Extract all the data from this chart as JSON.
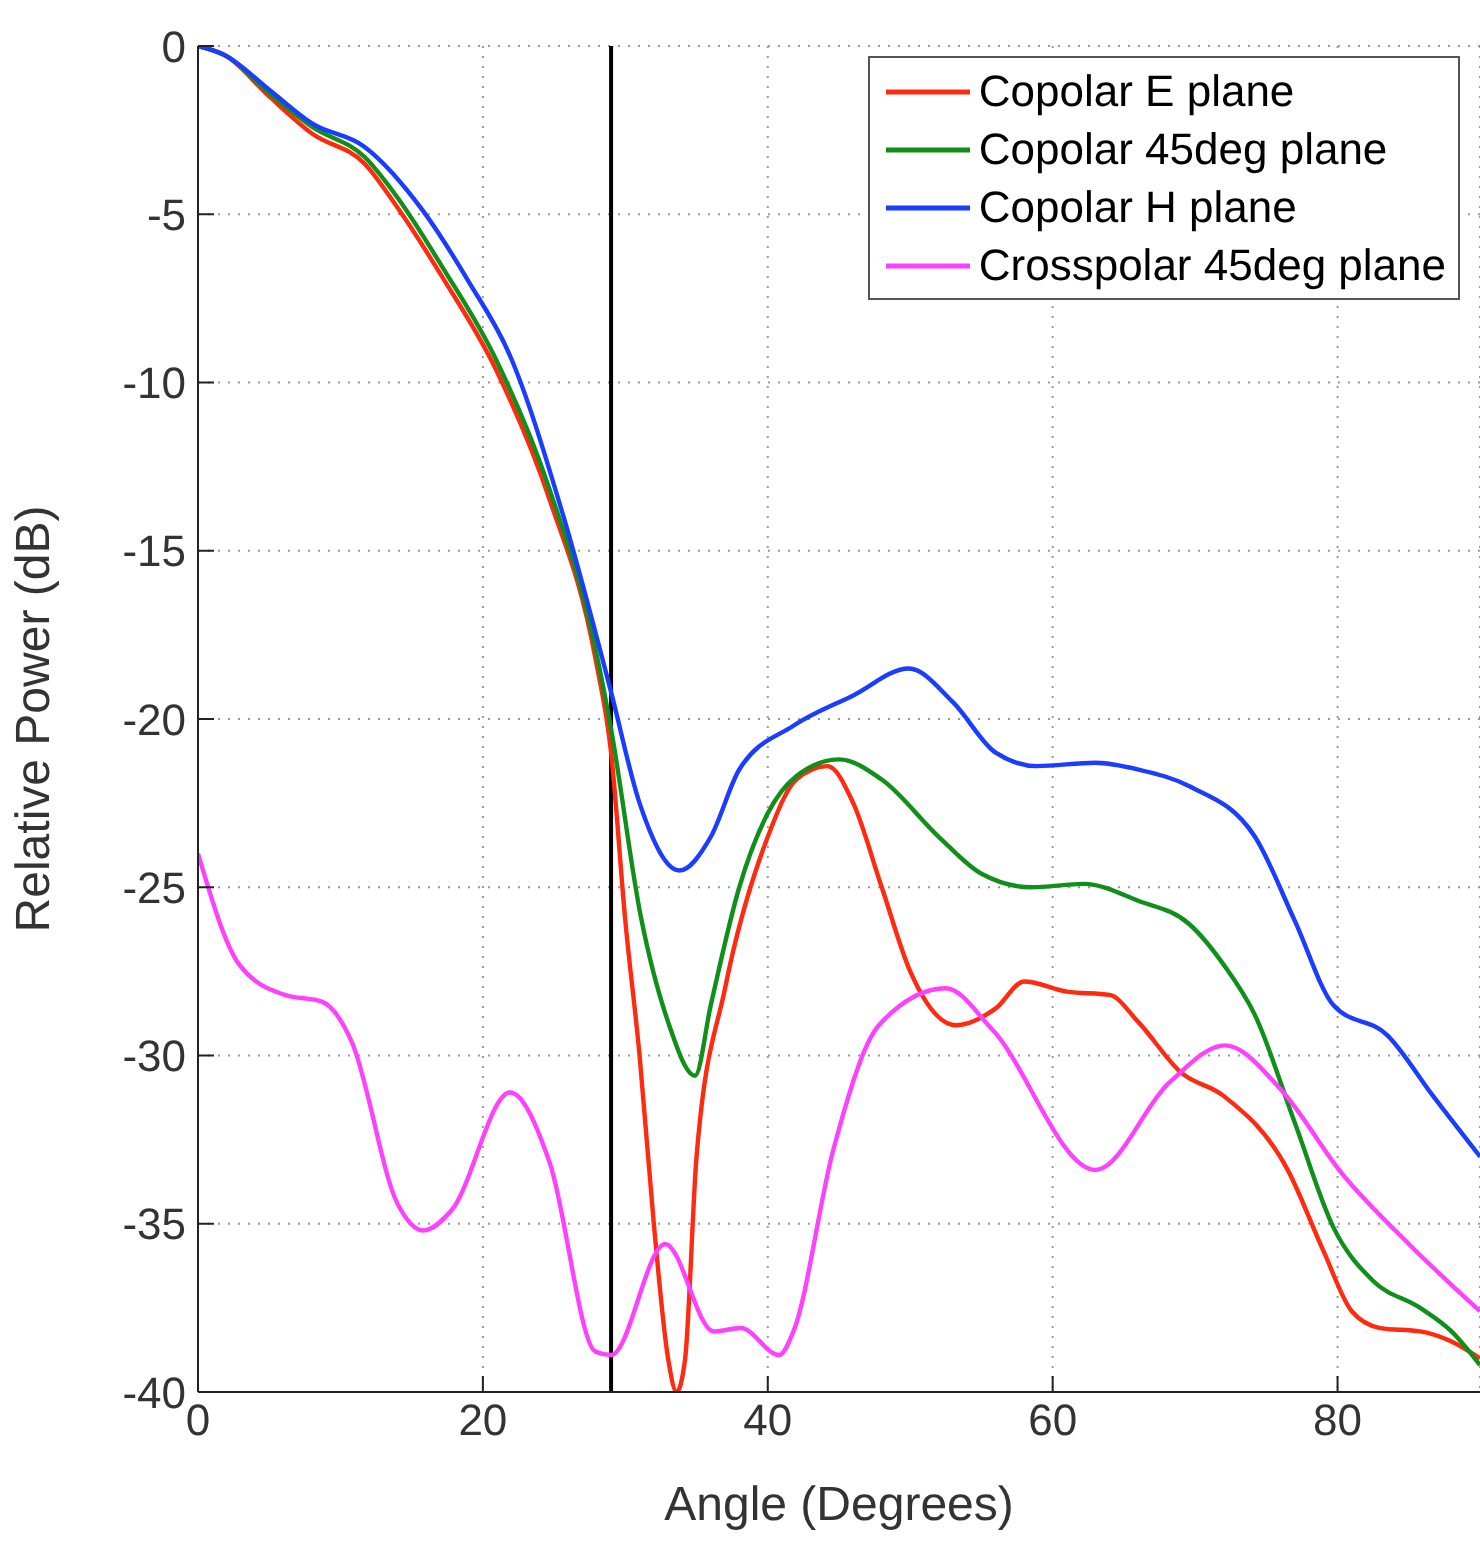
{
  "chart_data": {
    "type": "line",
    "xlabel": "Angle (Degrees)",
    "ylabel": "Relative Power (dB)",
    "xlim": [
      0,
      90
    ],
    "xticks": [
      0,
      20,
      40,
      60,
      80
    ],
    "ylim": [
      -40,
      0
    ],
    "yticks": [
      -40,
      -35,
      -30,
      -25,
      -20,
      -15,
      -10,
      -5,
      0
    ],
    "grid": true,
    "legend": "top right",
    "line_style": "solid",
    "marker": "none",
    "ref_lines": [
      {
        "axis": "x",
        "value": 29,
        "color": "#000000"
      }
    ],
    "series": [
      {
        "name": "Copolar E plane",
        "color": "#ff2a10",
        "x": [
          0,
          2,
          5,
          8,
          11.7,
          14,
          17.2,
          20.9,
          24.7,
          27.9,
          29,
          30,
          31,
          32,
          33,
          33.6,
          34.2,
          35,
          37,
          40,
          42,
          44.2,
          46,
          48,
          50,
          53.2,
          56,
          58,
          61,
          64,
          66,
          69,
          72,
          76.5,
          79,
          81,
          83,
          85.8,
          88,
          90
        ],
        "values": [
          0,
          -0.3,
          -1.5,
          -2.6,
          -3.5,
          -4.8,
          -6.9,
          -9.6,
          -13.5,
          -18.2,
          -21,
          -26,
          -30,
          -35,
          -39,
          -40,
          -39,
          -33,
          -28,
          -23.5,
          -21.8,
          -21.4,
          -22.5,
          -25,
          -27.5,
          -29.1,
          -28.6,
          -27.8,
          -28.1,
          -28.2,
          -29,
          -30.5,
          -31.2,
          -33.4,
          -35.8,
          -37.6,
          -38.1,
          -38.2,
          -38.5,
          -39
        ]
      },
      {
        "name": "Copolar 45deg plane",
        "color": "#10901a",
        "x": [
          0,
          2,
          5,
          8,
          11.7,
          14,
          17.2,
          20.9,
          24.7,
          27.9,
          29,
          31.1,
          33,
          34.9,
          36,
          38,
          40,
          42,
          45,
          48,
          52,
          55,
          58.5,
          62.2,
          66,
          69.6,
          72,
          74.2,
          77,
          79.7,
          82.5,
          85.8,
          88,
          90
        ],
        "values": [
          0,
          -0.3,
          -1.4,
          -2.4,
          -3.3,
          -4.5,
          -6.6,
          -9.3,
          -13.2,
          -17.9,
          -20.3,
          -25.9,
          -29,
          -30.6,
          -28.5,
          -25,
          -22.8,
          -21.7,
          -21.2,
          -21.8,
          -23.5,
          -24.6,
          -25,
          -24.9,
          -25.4,
          -26.1,
          -27.3,
          -28.8,
          -32,
          -35.1,
          -36.7,
          -37.5,
          -38.2,
          -39.2
        ]
      },
      {
        "name": "Copolar H plane",
        "color": "#1a3dff",
        "x": [
          0,
          2,
          5,
          8,
          11.7,
          15.8,
          19,
          21.9,
          25.6,
          29,
          31,
          33.8,
          36,
          38,
          41.8,
          46,
          49.9,
          53,
          56,
          58.9,
          63,
          66,
          69.6,
          74.2,
          77,
          79.7,
          83.5,
          86.7,
          90
        ],
        "values": [
          0,
          -0.3,
          -1.3,
          -2.3,
          -3,
          -4.9,
          -7,
          -9.2,
          -13.9,
          -19.2,
          -22.5,
          -24.5,
          -23.5,
          -21.5,
          -20.2,
          -19.3,
          -18.5,
          -19.5,
          -21,
          -21.4,
          -21.3,
          -21.5,
          -22,
          -23.5,
          -26,
          -28.5,
          -29.4,
          -31.2,
          -33
        ]
      },
      {
        "name": "Crosspolar 45deg plane",
        "color": "#ff40ff",
        "x": [
          0,
          2.9,
          6.1,
          8.7,
          10.8,
          14,
          15.8,
          17.8,
          21.9,
          24.7,
          27.9,
          29,
          32.8,
          36.2,
          38.1,
          40.8,
          41.8,
          44.6,
          47.8,
          52.5,
          55.7,
          63,
          68.2,
          72.1,
          76,
          80.3,
          85,
          90
        ],
        "values": [
          -24,
          -27.3,
          -28.2,
          -28.4,
          -29.6,
          -34.4,
          -35.2,
          -34.6,
          -31.1,
          -33.2,
          -38.8,
          -38.9,
          -35.6,
          -38.2,
          -38.1,
          -38.9,
          -38.2,
          -32.8,
          -29.1,
          -28,
          -29.2,
          -33.4,
          -30.8,
          -29.7,
          -31,
          -33.5,
          -35.6,
          -37.6
        ]
      }
    ]
  }
}
